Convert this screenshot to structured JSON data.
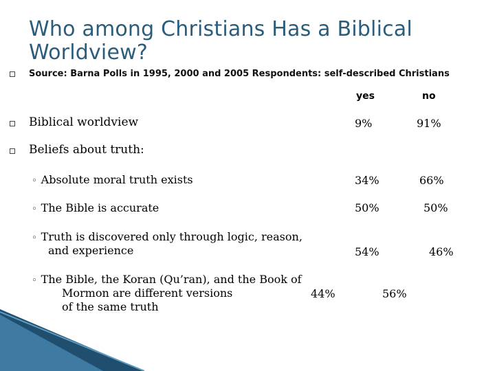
{
  "slide": {
    "title": "Who among Christians Has a Biblical Worldview?",
    "source": "Source: Barna Polls in 1995, 2000 and 2005 Respondents: self-described Christians",
    "col_yes": "yes",
    "col_no": "no",
    "rows": [
      {
        "label": "Biblical worldview",
        "yes": "9%",
        "no": "91%"
      }
    ],
    "beliefs_heading": "Beliefs about truth:",
    "sub_rows": [
      {
        "marker": "◦",
        "label": "Absolute moral truth exists",
        "yes": "34%",
        "no": "66%"
      },
      {
        "marker": "◦",
        "label": "The Bible is accurate",
        "yes": "50%",
        "no": "50%"
      },
      {
        "marker": "◦",
        "label_line1": "Truth is discovered only through logic, reason,",
        "label_line2": "and experience",
        "yes": "54%",
        "no": "46%"
      },
      {
        "marker": "◦",
        "label_line1": "The Bible, the Koran (Qu’ran), and the Book of",
        "label_line2": "Mormon are different versions",
        "label_line3": "of the same truth",
        "yes": "44%",
        "no": "56%"
      }
    ]
  },
  "colors": {
    "title": "#2a5d7c",
    "accent_dark": "#1f4e6e",
    "accent_light": "#5f9cc2"
  }
}
